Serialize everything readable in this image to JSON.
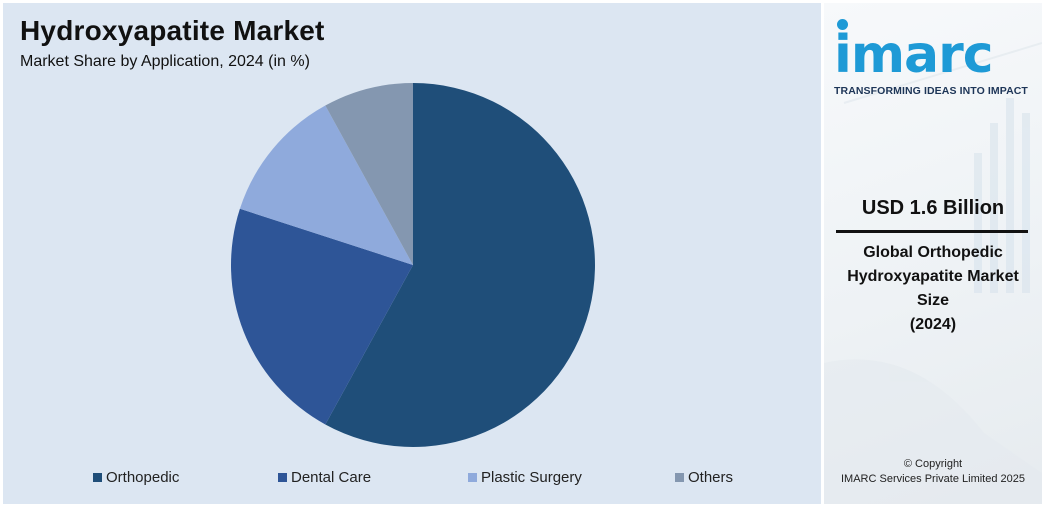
{
  "title": "Hydroxyapatite Market",
  "subtitle": "Market Share by Application, 2024 (in %)",
  "chart_data": {
    "type": "pie",
    "categories": [
      "Orthopedic",
      "Dental Care",
      "Plastic Surgery",
      "Others"
    ],
    "values": [
      58,
      22,
      12,
      8
    ],
    "colors": [
      "#1f4e79",
      "#2e5597",
      "#8faadc",
      "#8497b0"
    ],
    "start_angle_deg": 0,
    "direction": "clockwise",
    "legend_position": "bottom"
  },
  "legend": [
    {
      "label": "Orthopedic",
      "color": "#1f4e79"
    },
    {
      "label": "Dental Care",
      "color": "#2e5597"
    },
    {
      "label": "Plastic Surgery",
      "color": "#8faadc"
    },
    {
      "label": "Others",
      "color": "#8497b0"
    }
  ],
  "brand": {
    "logo_text": "imarc",
    "tagline": "TRANSFORMING IDEAS INTO IMPACT",
    "accent": "#1e9ad6"
  },
  "stat": {
    "value": "USD 1.6 Billion",
    "desc_lines": [
      "Global Orthopedic",
      "Hydroxyapatite Market",
      "Size",
      "(2024)"
    ]
  },
  "copyright": {
    "line1": "© Copyright",
    "line2": "IMARC Services Private Limited 2025"
  }
}
